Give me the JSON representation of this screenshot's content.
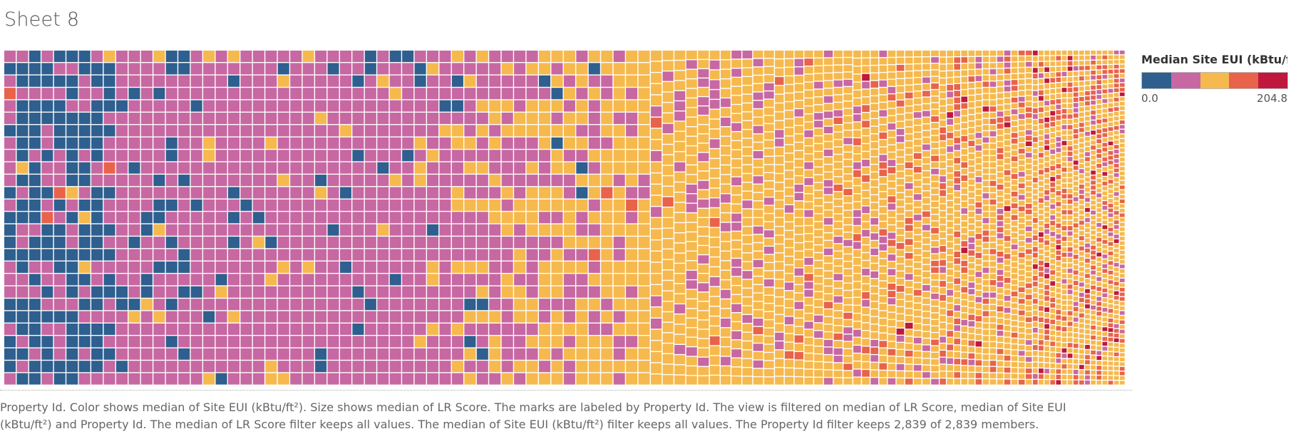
{
  "sheet": {
    "title": "Sheet 8"
  },
  "legend": {
    "title": "Median Site EUI (kBtu/f..",
    "min_label": "0.0",
    "max_label": "204.8",
    "colors": [
      "#2e5f8f",
      "#c768a2",
      "#f6b94e",
      "#e8634a",
      "#c0183c"
    ]
  },
  "caption": {
    "line1": "Property Id.  Color shows median of Site EUI (kBtu/ft²).  Size shows median of LR Score.  The marks are labeled by Property Id. The view is filtered on median of LR Score, median of Site EUI",
    "line2": "(kBtu/ft²) and Property Id. The median of LR Score filter keeps all values. The median of Site EUI (kBtu/ft²) filter keeps all values. The Property Id filter keeps 2,839 of 2,839 members."
  },
  "chart_data": {
    "type": "treemap",
    "color_measure": "Median Site EUI (kBtu/ft²)",
    "size_measure": "Median LR Score",
    "color_range": [
      0.0,
      204.8
    ],
    "member_count": 2839,
    "member_total": 2839,
    "color_bins": [
      "#2e5f8f",
      "#c768a2",
      "#f6b94e",
      "#e8634a",
      "#c0183c"
    ],
    "regions": [
      {
        "cols": 9,
        "rows": 27,
        "mix": [
          0.62,
          0.34,
          0.03,
          0.01,
          0.0
        ]
      },
      {
        "cols": 7,
        "rows": 27,
        "mix": [
          0.18,
          0.8,
          0.02,
          0.0,
          0.0
        ]
      },
      {
        "cols": 20,
        "rows": 27,
        "mix": [
          0.05,
          0.88,
          0.07,
          0.0,
          0.0
        ]
      },
      {
        "cols": 6,
        "rows": 27,
        "mix": [
          0.04,
          0.62,
          0.33,
          0.01,
          0.0
        ]
      },
      {
        "cols": 6,
        "rows": 27,
        "mix": [
          0.02,
          0.38,
          0.58,
          0.02,
          0.0
        ]
      },
      {
        "cols": 4,
        "rows": 27,
        "mix": [
          0.0,
          0.22,
          0.77,
          0.01,
          0.0
        ]
      },
      {
        "cols": 5,
        "rows": 30,
        "mix": [
          0.0,
          0.2,
          0.79,
          0.01,
          0.0
        ]
      },
      {
        "cols": 6,
        "rows": 34,
        "mix": [
          0.0,
          0.16,
          0.82,
          0.02,
          0.0
        ]
      },
      {
        "cols": 8,
        "rows": 38,
        "mix": [
          0.0,
          0.14,
          0.82,
          0.04,
          0.0
        ]
      },
      {
        "cols": 10,
        "rows": 42,
        "mix": [
          0.0,
          0.12,
          0.8,
          0.07,
          0.01
        ]
      },
      {
        "cols": 13,
        "rows": 48,
        "mix": [
          0.0,
          0.1,
          0.72,
          0.16,
          0.02
        ]
      },
      {
        "cols": 16,
        "rows": 58,
        "mix": [
          0.0,
          0.08,
          0.62,
          0.26,
          0.04
        ]
      }
    ]
  }
}
